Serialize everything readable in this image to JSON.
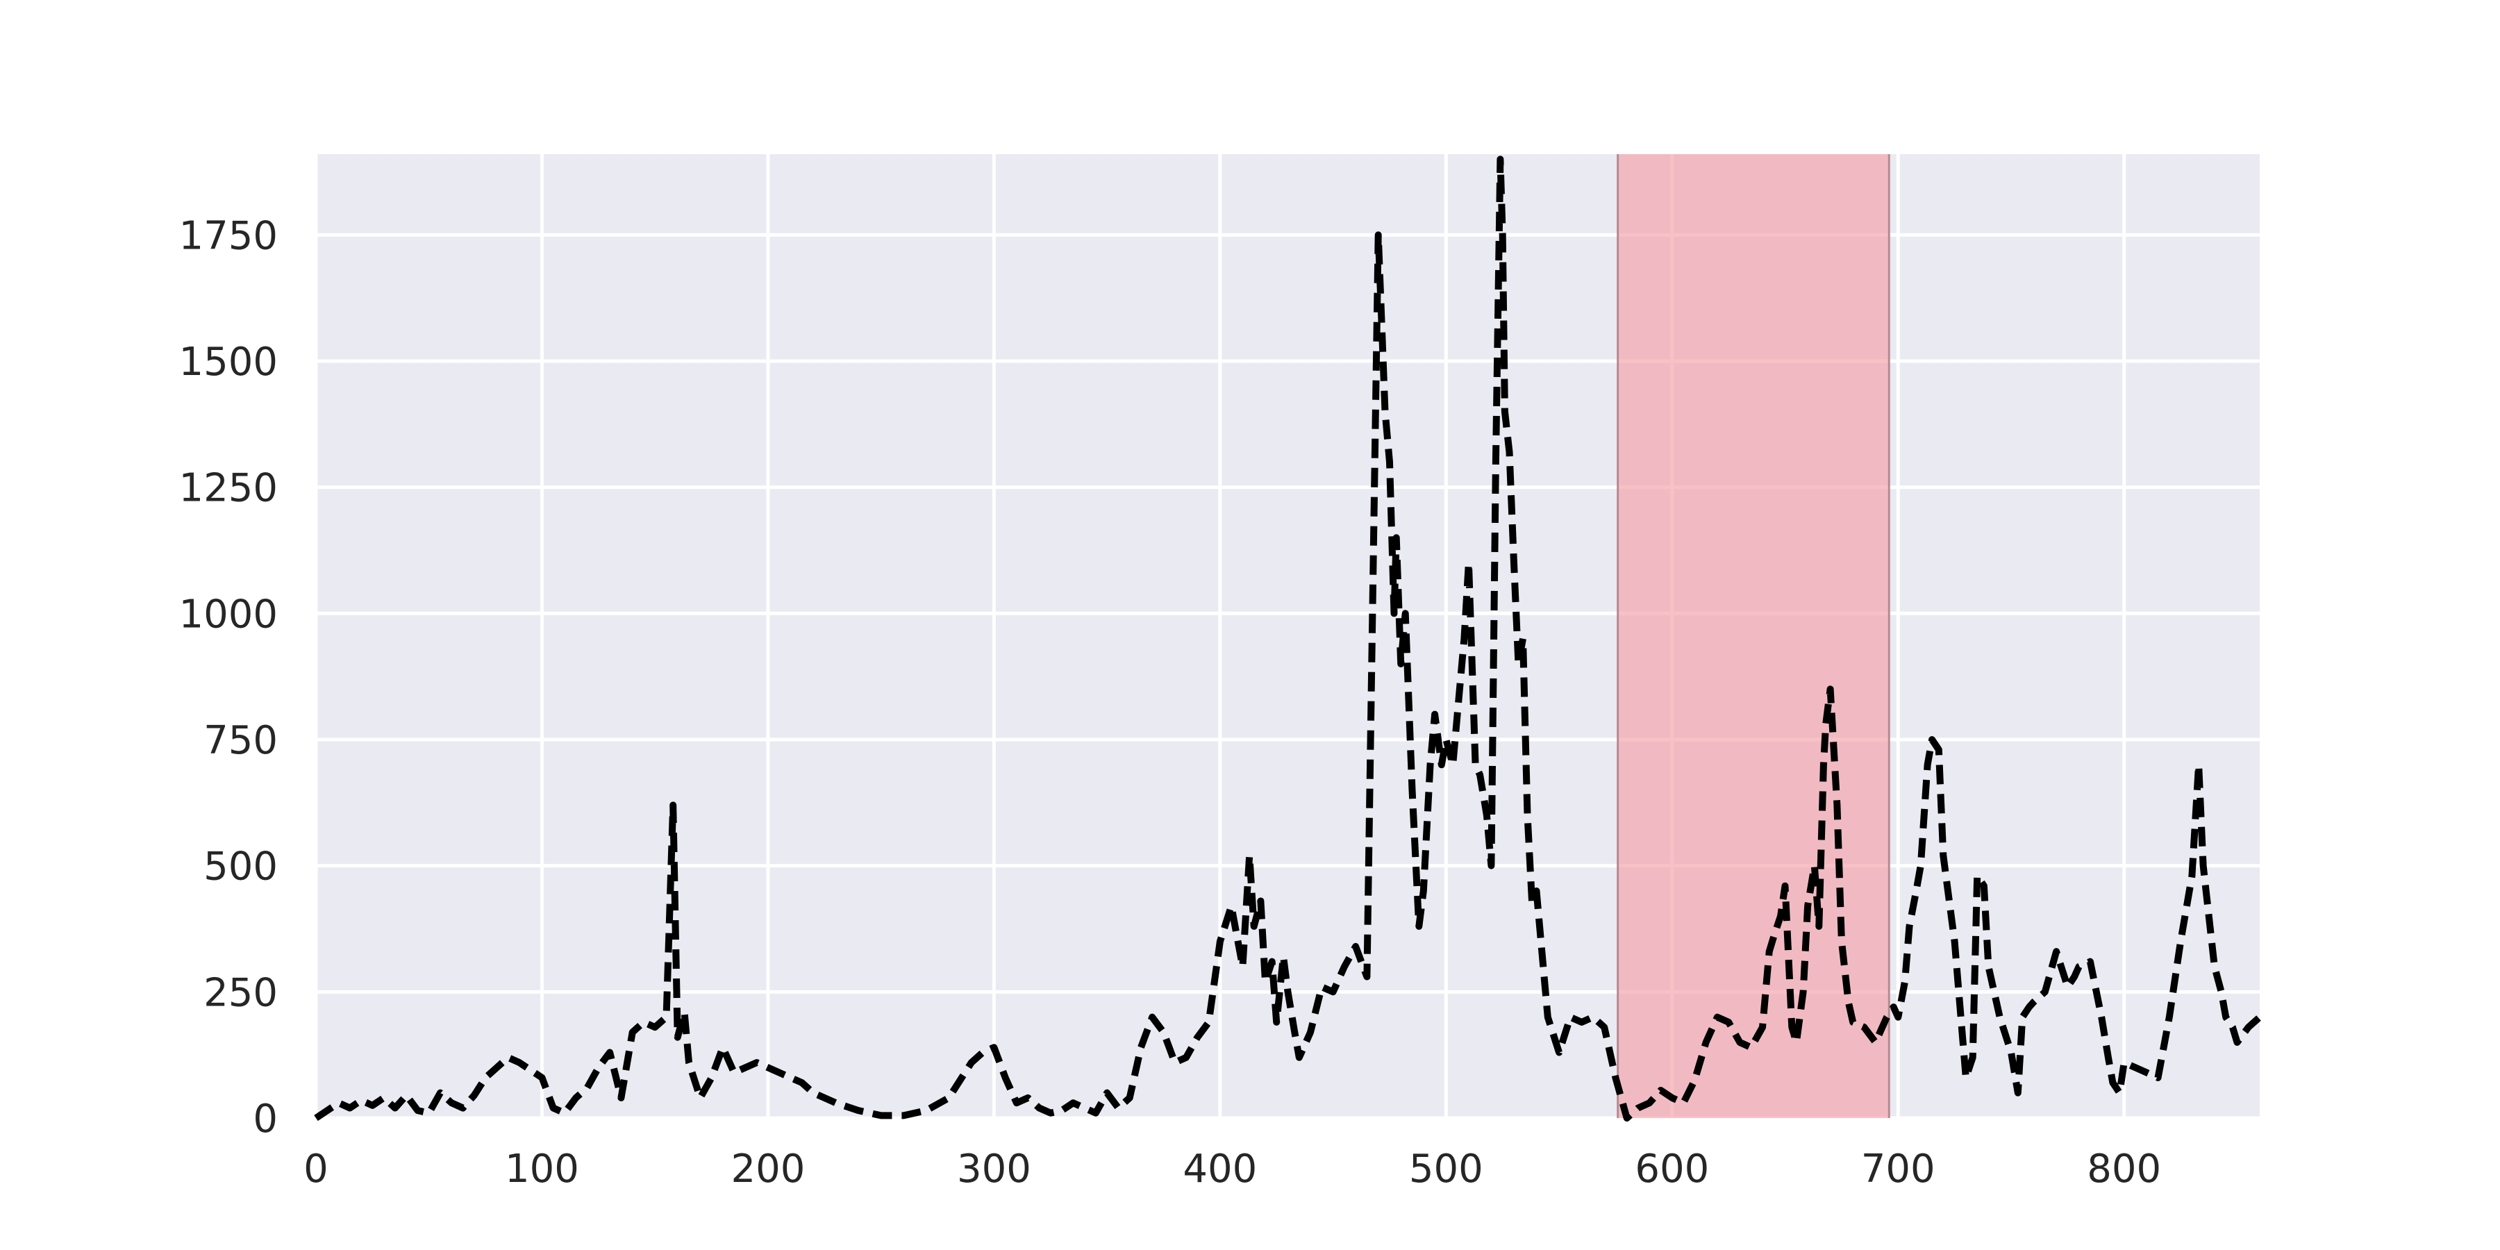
{
  "chart_data": {
    "type": "line",
    "title": "",
    "xlabel": "",
    "ylabel": "",
    "xlim": [
      0,
      860
    ],
    "ylim": [
      0,
      1910
    ],
    "grid": true,
    "x_ticks": [
      0,
      100,
      200,
      300,
      400,
      500,
      600,
      700,
      800
    ],
    "x_tick_labels": [
      "0",
      "100",
      "200",
      "300",
      "400",
      "500",
      "600",
      "700",
      "800"
    ],
    "y_ticks": [
      0,
      250,
      500,
      750,
      1000,
      1250,
      1500,
      1750
    ],
    "y_tick_labels": [
      "0",
      "250",
      "500",
      "750",
      "1000",
      "1250",
      "1500",
      "1750"
    ],
    "highlight_span": {
      "x0": 576,
      "x1": 696,
      "color": "#f4a0a8"
    },
    "series": [
      {
        "style": "dashed",
        "color": "#000000",
        "x": [
          0,
          5,
          10,
          15,
          20,
          25,
          30,
          35,
          40,
          45,
          50,
          55,
          60,
          65,
          70,
          75,
          80,
          85,
          90,
          95,
          100,
          105,
          110,
          115,
          120,
          125,
          130,
          135,
          140,
          145,
          150,
          155,
          158,
          160,
          163,
          165,
          170,
          175,
          180,
          185,
          190,
          195,
          200,
          205,
          210,
          215,
          220,
          225,
          230,
          240,
          250,
          260,
          270,
          280,
          290,
          295,
          300,
          305,
          310,
          315,
          320,
          325,
          330,
          335,
          340,
          345,
          350,
          355,
          360,
          365,
          370,
          375,
          380,
          385,
          390,
          395,
          400,
          405,
          410,
          413,
          415,
          418,
          420,
          423,
          425,
          428,
          430,
          433,
          435,
          440,
          445,
          450,
          455,
          460,
          465,
          470,
          473,
          475,
          477,
          478,
          480,
          482,
          485,
          488,
          490,
          493,
          495,
          498,
          500,
          503,
          505,
          508,
          510,
          513,
          515,
          518,
          520,
          522,
          524,
          525,
          526,
          528,
          530,
          532,
          534,
          536,
          538,
          540,
          542,
          545,
          550,
          555,
          560,
          565,
          570,
          575,
          580,
          585,
          590,
          595,
          600,
          605,
          610,
          615,
          620,
          625,
          630,
          635,
          640,
          643,
          645,
          648,
          650,
          653,
          655,
          658,
          660,
          663,
          665,
          667,
          668,
          670,
          673,
          675,
          678,
          680,
          685,
          690,
          695,
          698,
          700,
          703,
          705,
          708,
          710,
          713,
          715,
          718,
          720,
          725,
          730,
          733,
          735,
          738,
          740,
          745,
          750,
          753,
          755,
          758,
          760,
          765,
          770,
          775,
          778,
          780,
          785,
          790,
          793,
          795,
          798,
          800,
          805,
          810,
          815,
          820,
          825,
          830,
          833,
          835,
          838,
          840,
          843,
          845,
          848,
          850,
          855,
          860
        ],
        "y": [
          0,
          15,
          30,
          20,
          35,
          25,
          40,
          20,
          45,
          15,
          10,
          50,
          30,
          20,
          45,
          80,
          100,
          120,
          110,
          95,
          80,
          20,
          10,
          40,
          60,
          100,
          130,
          40,
          170,
          190,
          180,
          200,
          620,
          160,
          210,
          110,
          40,
          80,
          140,
          90,
          100,
          110,
          100,
          90,
          80,
          70,
          50,
          40,
          30,
          15,
          5,
          5,
          15,
          40,
          110,
          130,
          140,
          80,
          30,
          40,
          20,
          10,
          15,
          30,
          20,
          10,
          50,
          20,
          40,
          140,
          200,
          170,
          110,
          120,
          160,
          190,
          350,
          420,
          300,
          520,
          380,
          430,
          270,
          310,
          190,
          320,
          250,
          170,
          120,
          170,
          260,
          250,
          300,
          340,
          280,
          1750,
          1400,
          1300,
          1000,
          1150,
          900,
          1000,
          650,
          380,
          450,
          700,
          800,
          700,
          750,
          700,
          800,
          950,
          1100,
          700,
          680,
          600,
          500,
          1300,
          1900,
          1750,
          1400,
          1320,
          1100,
          900,
          950,
          600,
          430,
          450,
          350,
          200,
          130,
          200,
          190,
          200,
          180,
          80,
          0,
          20,
          30,
          55,
          40,
          30,
          75,
          150,
          200,
          190,
          150,
          140,
          180,
          330,
          360,
          400,
          460,
          180,
          150,
          250,
          420,
          500,
          380,
          700,
          780,
          850,
          620,
          350,
          230,
          190,
          180,
          150,
          200,
          220,
          200,
          270,
          380,
          450,
          500,
          700,
          750,
          730,
          520,
          350,
          80,
          120,
          480,
          460,
          300,
          200,
          130,
          50,
          200,
          220,
          230,
          250,
          330,
          260,
          280,
          300,
          310,
          200,
          120,
          70,
          50,
          110,
          100,
          90,
          80,
          200,
          350,
          480,
          700,
          500,
          380,
          300,
          250,
          200,
          180,
          150,
          180,
          200
        ]
      }
    ]
  }
}
